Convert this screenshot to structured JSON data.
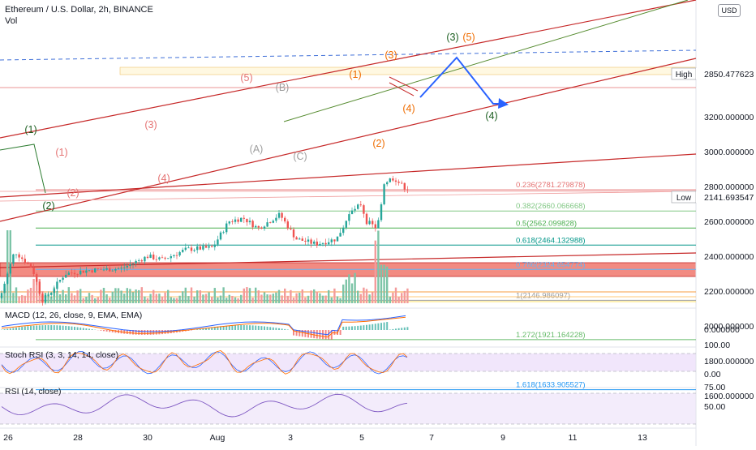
{
  "header": {
    "title": "Ethereum / U.S. Dollar, 2h, BINANCE",
    "vol_label": "Vol",
    "currency": "USD"
  },
  "chart_data": {
    "type": "candlestick",
    "price_axis": {
      "ticks": [
        "3200.000000",
        "3000.000000",
        "2800.000000",
        "2600.000000",
        "2400.000000",
        "2200.000000",
        "2000.000000",
        "1800.000000",
        "1600.000000"
      ],
      "tick_values": [
        3200,
        3000,
        2800,
        2600,
        2400,
        2200,
        2000,
        1800,
        1600
      ]
    },
    "time_axis": {
      "labels": [
        "26",
        "28",
        "30",
        "Aug",
        "3",
        "5",
        "7",
        "9",
        "11",
        "13"
      ]
    },
    "markers": [
      {
        "label": "High",
        "value": "2850.477623"
      },
      {
        "label": "Low",
        "value": "2141.693547"
      }
    ],
    "fib_levels": [
      {
        "label": "0.236(2781.279878)",
        "price": 2781.28,
        "color": "#e57373"
      },
      {
        "label": "0.382(2660.066668)",
        "price": 2660.07,
        "color": "#81c784"
      },
      {
        "label": "0.5(2562.099828)",
        "price": 2562.1,
        "color": "#4caf50"
      },
      {
        "label": "0.618(2464.132988)",
        "price": 2464.13,
        "color": "#009688"
      },
      {
        "label": "0.786(2324.654774)",
        "price": 2324.65,
        "color": "#64b5f6"
      },
      {
        "label": "1(2146.986097)",
        "price": 2146.99,
        "color": "#9e9e9e"
      },
      {
        "label": "1.272(1921.164228)",
        "price": 1921.16,
        "color": "#66bb6a"
      },
      {
        "label": "1.618(1633.905527)",
        "price": 1633.91,
        "color": "#2196f3"
      }
    ],
    "wave_labels": [
      {
        "text": "(1)",
        "color": "#1b5e20"
      },
      {
        "text": "(2)",
        "color": "#1b5e20"
      },
      {
        "text": "(1)",
        "color": "#e57373"
      },
      {
        "text": "(2)",
        "color": "#e57373"
      },
      {
        "text": "(3)",
        "color": "#e57373"
      },
      {
        "text": "(4)",
        "color": "#e57373"
      },
      {
        "text": "(5)",
        "color": "#e57373"
      },
      {
        "text": "(A)",
        "color": "#9e9e9e"
      },
      {
        "text": "(B)",
        "color": "#9e9e9e"
      },
      {
        "text": "(C)",
        "color": "#9e9e9e"
      },
      {
        "text": "(1)",
        "color": "#ef6c00"
      },
      {
        "text": "(2)",
        "color": "#ef6c00"
      },
      {
        "text": "(3)",
        "color": "#ef6c00"
      },
      {
        "text": "(4)",
        "color": "#ef6c00"
      },
      {
        "text": "(5)",
        "color": "#ef6c00"
      },
      {
        "text": "(3)",
        "color": "#1b5e20"
      },
      {
        "text": "(4)",
        "color": "#1b5e20"
      }
    ],
    "indicators": [
      {
        "name": "MACD (12, 26, close, 9, EMA, EMA)",
        "ticks": [
          "0.000000"
        ]
      },
      {
        "name": "Stoch RSI (3, 3, 14, 14, close)",
        "ticks": [
          "100.00",
          "0.00"
        ]
      },
      {
        "name": "RSI (14, close)",
        "ticks": [
          "75.00",
          "50.00"
        ]
      }
    ],
    "colors": {
      "up": "#26a69a",
      "down": "#ef5350",
      "zone": "#f28b82",
      "projection": "#2962ff"
    }
  }
}
